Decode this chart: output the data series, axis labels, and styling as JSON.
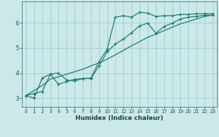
{
  "xlabel": "Humidex (Indice chaleur)",
  "bg_color": "#cce8e8",
  "grid_color": "#99cccc",
  "line_color": "#1a7a6e",
  "xlim": [
    -0.5,
    23.5
  ],
  "ylim": [
    2.65,
    6.85
  ],
  "yticks": [
    3,
    4,
    5,
    6
  ],
  "xticks": [
    0,
    1,
    2,
    3,
    4,
    5,
    6,
    7,
    8,
    9,
    10,
    11,
    12,
    13,
    14,
    15,
    16,
    17,
    18,
    19,
    20,
    21,
    22,
    23
  ],
  "line1_x": [
    0,
    1,
    2,
    3,
    4,
    5,
    6,
    7,
    8,
    9,
    10,
    11,
    12,
    13,
    14,
    15,
    16,
    17,
    18,
    19,
    20,
    21,
    22,
    23
  ],
  "line1_y": [
    3.1,
    3.0,
    3.8,
    3.95,
    3.55,
    3.65,
    3.75,
    3.78,
    3.8,
    4.45,
    4.95,
    6.22,
    6.28,
    6.22,
    6.42,
    6.38,
    6.25,
    6.28,
    6.28,
    6.33,
    6.33,
    6.36,
    6.36,
    6.36
  ],
  "line2_x": [
    0,
    2,
    3,
    4,
    5,
    6,
    7,
    8,
    9,
    10,
    11,
    12,
    13,
    14,
    15,
    16,
    17,
    18,
    19,
    20,
    21,
    22,
    23
  ],
  "line2_y": [
    3.1,
    3.5,
    3.75,
    3.85,
    3.95,
    4.05,
    4.15,
    4.28,
    4.4,
    4.55,
    4.72,
    4.9,
    5.08,
    5.25,
    5.42,
    5.55,
    5.68,
    5.82,
    5.95,
    6.05,
    6.15,
    6.25,
    6.3
  ],
  "line3_x": [
    0,
    1,
    2,
    3,
    4,
    5,
    6,
    7,
    8,
    9,
    10,
    11,
    12,
    13,
    14,
    15,
    16,
    17,
    18,
    19,
    20,
    21,
    22,
    23
  ],
  "line3_y": [
    3.1,
    3.18,
    3.26,
    3.95,
    4.0,
    3.72,
    3.68,
    3.78,
    3.78,
    4.28,
    4.85,
    5.15,
    5.35,
    5.6,
    5.88,
    5.98,
    5.58,
    5.85,
    5.98,
    6.15,
    6.22,
    6.25,
    6.3,
    6.3
  ]
}
